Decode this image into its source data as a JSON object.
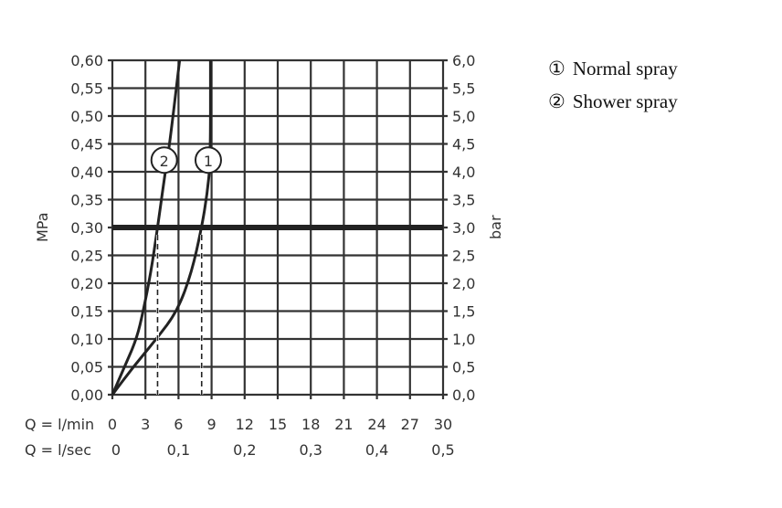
{
  "chart_data": {
    "type": "line",
    "xlabel": "Q = l/min",
    "xlabel2": "Q = l/sec",
    "ylabel": "MPa",
    "ylabel2": "bar",
    "xlim": [
      0,
      30
    ],
    "ylim": [
      0,
      0.6
    ],
    "grid": true,
    "legend_placement": "right",
    "x_ticks": [
      "0",
      "3",
      "6",
      "9",
      "12",
      "15",
      "18",
      "21",
      "24",
      "27",
      "30"
    ],
    "x2_ticks": [
      {
        "v": 0,
        "label": "0"
      },
      {
        "v": 6,
        "label": "0,1"
      },
      {
        "v": 12,
        "label": "0,2"
      },
      {
        "v": 18,
        "label": "0,3"
      },
      {
        "v": 24,
        "label": "0,4"
      },
      {
        "v": 30,
        "label": "0,5"
      }
    ],
    "y_ticks": [
      "0,00",
      "0,05",
      "0,10",
      "0,15",
      "0,20",
      "0,25",
      "0,30",
      "0,35",
      "0,40",
      "0,45",
      "0,50",
      "0,55",
      "0,60"
    ],
    "y2_ticks": [
      "0,0",
      "0,5",
      "1,0",
      "1,5",
      "2,0",
      "2,5",
      "3,0",
      "3,5",
      "4,0",
      "4,5",
      "5,0",
      "5,5",
      "6,0"
    ],
    "reference_line": {
      "y": 0.3
    },
    "series": [
      {
        "name": "Normal spray",
        "marker": "1",
        "x": [
          0,
          1.9,
          4.0,
          5.9,
          7.2,
          8.1,
          8.6,
          8.9,
          8.9
        ],
        "y": [
          0,
          0.05,
          0.1,
          0.15,
          0.22,
          0.3,
          0.36,
          0.42,
          0.6
        ],
        "dashed_at": 8.1
      },
      {
        "name": "Shower spray",
        "marker": "2",
        "x": [
          0,
          1.1,
          2.2,
          2.8,
          3.5,
          4.1,
          4.8,
          5.2,
          6.1
        ],
        "y": [
          0,
          0.05,
          0.1,
          0.15,
          0.22,
          0.3,
          0.4,
          0.45,
          0.6
        ],
        "dashed_at": 4.1
      }
    ],
    "markers": [
      {
        "label": "1",
        "x": 8.7,
        "y": 0.421
      },
      {
        "label": "2",
        "x": 4.7,
        "y": 0.421
      }
    ]
  },
  "legend": [
    {
      "symbol": "①",
      "label": "Normal spray"
    },
    {
      "symbol": "②",
      "label": "Shower spray"
    }
  ]
}
